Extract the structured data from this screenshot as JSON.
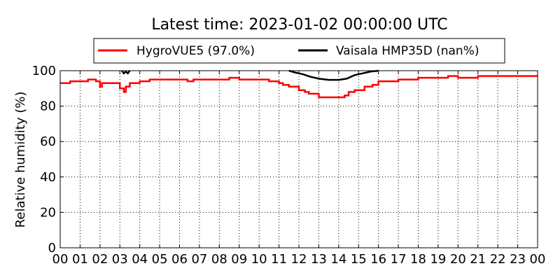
{
  "chart_data": {
    "type": "line",
    "title": "Latest time: 2023-01-02 00:00:00 UTC",
    "xlabel": "",
    "ylabel": "Relative humidity (%)",
    "xlim": [
      0,
      24
    ],
    "ylim": [
      0,
      100
    ],
    "x_ticks": [
      "00",
      "01",
      "02",
      "03",
      "04",
      "05",
      "06",
      "07",
      "08",
      "09",
      "10",
      "11",
      "12",
      "13",
      "14",
      "15",
      "16",
      "17",
      "18",
      "19",
      "20",
      "21",
      "22",
      "23",
      "00"
    ],
    "y_ticks": [
      "0",
      "20",
      "40",
      "60",
      "80",
      "100"
    ],
    "grid": true,
    "legend_position": "top",
    "series": [
      {
        "name": "HygroVUE5 (97.0%)",
        "color": "#ff0000",
        "x": [
          0.0,
          0.4,
          0.5,
          0.9,
          1.0,
          1.3,
          1.4,
          1.8,
          1.9,
          2.0,
          2.1,
          2.5,
          3.0,
          3.2,
          3.3,
          3.5,
          4.0,
          4.2,
          4.5,
          5.0,
          6.3,
          6.4,
          6.7,
          7.0,
          8.0,
          8.5,
          9.0,
          10.0,
          10.5,
          11.0,
          11.2,
          11.5,
          12.0,
          12.3,
          12.5,
          13.0,
          14.0,
          14.3,
          14.5,
          14.8,
          15.0,
          15.3,
          15.7,
          16.0,
          16.5,
          17.0,
          17.5,
          18.0,
          19.0,
          19.5,
          20.0,
          21.0,
          22.0,
          23.0,
          24.0
        ],
        "y": [
          93,
          93,
          94,
          94,
          94,
          94,
          95,
          94,
          94,
          91,
          93,
          93,
          90,
          88,
          91,
          93,
          94,
          94,
          95,
          95,
          95,
          94,
          95,
          95,
          95,
          96,
          95,
          95,
          94,
          93,
          92,
          91,
          89,
          88,
          87,
          85,
          85,
          86,
          88,
          89,
          89,
          91,
          92,
          94,
          94,
          95,
          95,
          96,
          96,
          97,
          96,
          97,
          97,
          97,
          97
        ]
      },
      {
        "name": "Vaisala HMP35D (nan%)",
        "color": "#000000",
        "segments": [
          {
            "x": [
              3.1,
              3.2,
              3.3,
              3.4,
              3.5
            ],
            "y": [
              100,
              98.5,
              99.5,
              98.5,
              100
            ]
          },
          {
            "x": [
              11.5,
              11.8,
              12.2,
              12.6,
              13.0,
              13.5,
              14.0,
              14.4,
              14.8,
              15.2,
              15.6,
              16.0
            ],
            "y": [
              100,
              99,
              98,
              96.5,
              95.5,
              94.8,
              94.8,
              95.5,
              97.5,
              98.5,
              99.5,
              100
            ]
          }
        ]
      }
    ]
  }
}
